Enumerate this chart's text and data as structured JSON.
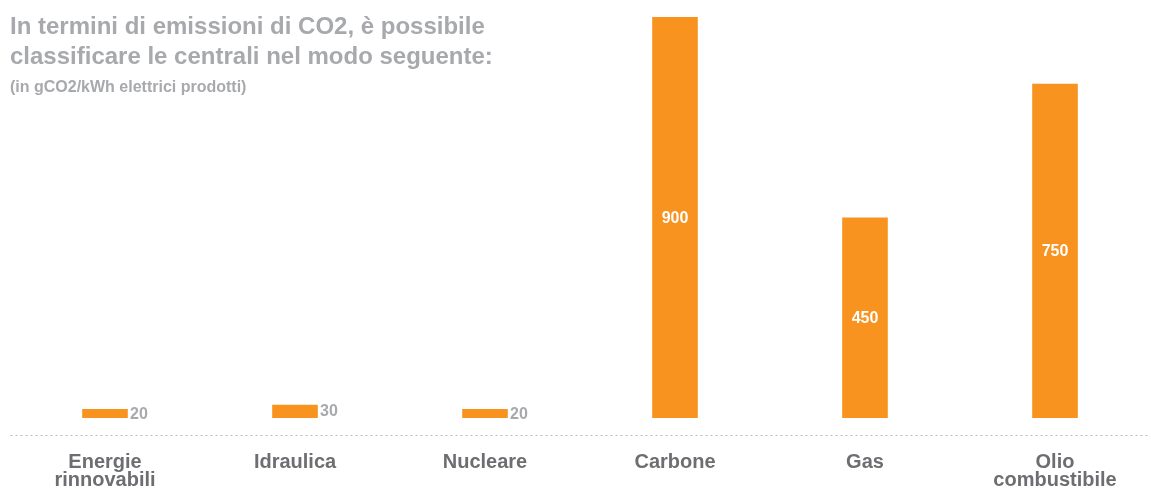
{
  "chart_data": {
    "type": "bar",
    "title": "In termini di emissioni di CO2, è possibile classificare le centrali nel modo seguente:",
    "subtitle": "(in gCO2/kWh elettrici prodotti)",
    "categories": [
      "Energie rinnovabili",
      "Idraulica",
      "Nucleare",
      "Carbone",
      "Gas",
      "Olio combustibile"
    ],
    "values": [
      20,
      30,
      20,
      900,
      450,
      750
    ],
    "color": "#f7931e",
    "data_labels": true,
    "grid": false
  }
}
